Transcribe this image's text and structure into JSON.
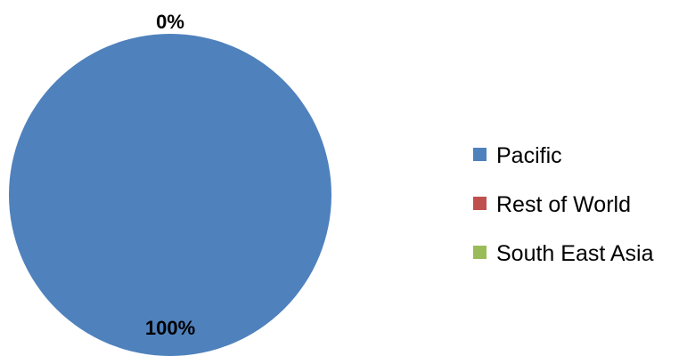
{
  "chart_data": {
    "type": "pie",
    "title": "",
    "categories": [
      "Pacific",
      "Rest of World",
      "South East Asia"
    ],
    "values": [
      100,
      0,
      0
    ],
    "data_labels": [
      "100%",
      "0%",
      "0%"
    ],
    "colors": [
      "#4F81BD",
      "#C0504D",
      "#9BBB59"
    ],
    "legend_position": "right",
    "legend": [
      {
        "label": "Pacific",
        "color": "#4F81BD"
      },
      {
        "label": "Rest of World",
        "color": "#C0504D"
      },
      {
        "label": "South East Asia",
        "color": "#9BBB59"
      }
    ],
    "label_top": "0%",
    "label_bottom": "100%"
  }
}
